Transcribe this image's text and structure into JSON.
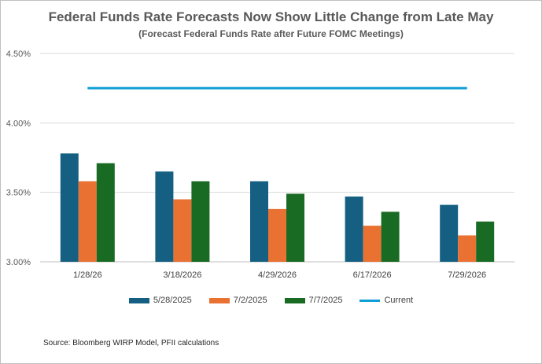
{
  "chart_data": {
    "type": "bar",
    "title": "Federal Funds Rate Forecasts Now Show Little Change from Late May",
    "subtitle": "(Forecast Federal Funds Rate after Future FOMC Meetings)",
    "categories": [
      "1/28/26",
      "3/18/2026",
      "4/29/2026",
      "6/17/2026",
      "7/29/2026"
    ],
    "series": [
      {
        "name": "5/28/2025",
        "type": "bar",
        "color": "#156082",
        "values": [
          3.78,
          3.65,
          3.58,
          3.47,
          3.41
        ]
      },
      {
        "name": "7/2/2025",
        "type": "bar",
        "color": "#E97132",
        "values": [
          3.58,
          3.45,
          3.38,
          3.26,
          3.19
        ]
      },
      {
        "name": "7/7/2025",
        "type": "bar",
        "color": "#196B24",
        "values": [
          3.71,
          3.58,
          3.49,
          3.36,
          3.29
        ]
      },
      {
        "name": "Current",
        "type": "line",
        "color": "#0F9ED5",
        "values": [
          4.25,
          4.25,
          4.25,
          4.25,
          4.25
        ]
      }
    ],
    "ylim": [
      3.0,
      4.5
    ],
    "yticks": [
      3.0,
      3.5,
      4.0,
      4.5
    ],
    "ytick_labels": [
      "3.00%",
      "3.50%",
      "4.00%",
      "4.50%"
    ],
    "grid": true,
    "legend_position": "bottom"
  },
  "source_text": "Source:  Bloomberg WIRP Model, PFII calculations"
}
